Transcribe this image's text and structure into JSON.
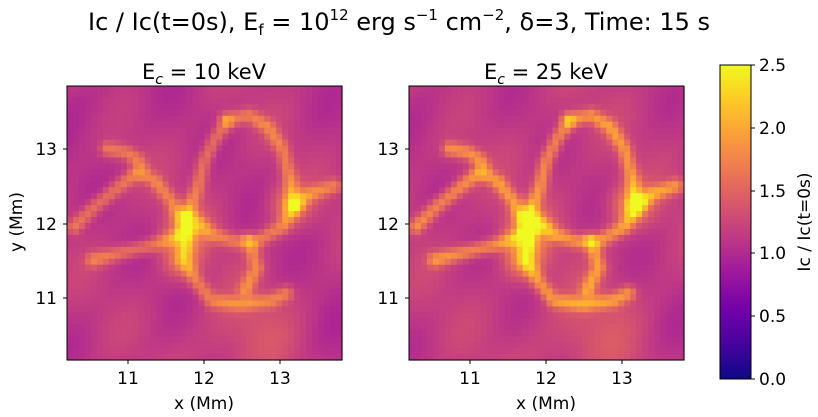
{
  "figure": {
    "suptitle_parts": {
      "p1": "Ic / Ic(t=0s), E",
      "p1_sub": "f",
      "p2": " = 10",
      "p2_sup": "12",
      "p3": " erg s",
      "p3_sup": "−1",
      "p4": " cm",
      "p4_sup": "−2",
      "p5": ", δ=3, Time: 15 s"
    },
    "colormap": "plasma",
    "colors": {
      "plasma": [
        "#0d0887",
        "#46039f",
        "#7201a8",
        "#9c179e",
        "#bd3786",
        "#d8576b",
        "#ed7953",
        "#fb9f3a",
        "#fdca26",
        "#f0f921"
      ]
    }
  },
  "chart_data": [
    {
      "type": "heatmap",
      "title_prefix": "E",
      "title_sub": "c",
      "title_suffix": " = 10 keV",
      "xlabel": "x (Mm)",
      "ylabel": "y (Mm)",
      "xlim": [
        10.15,
        13.85
      ],
      "ylim": [
        10.15,
        13.85
      ],
      "xticks": [
        "11",
        "12",
        "13"
      ],
      "yticks": [
        "11",
        "12",
        "13"
      ],
      "value_range": [
        0.9,
        2.1
      ],
      "description_value_scale": "ridges ~1.6-2.0, background ~1.0-1.2"
    },
    {
      "type": "heatmap",
      "title_prefix": "E",
      "title_sub": "c",
      "title_suffix": " = 25 keV",
      "xlabel": "x (Mm)",
      "ylabel": "",
      "xlim": [
        10.15,
        13.85
      ],
      "ylim": [
        10.15,
        13.85
      ],
      "xticks": [
        "11",
        "12",
        "13"
      ],
      "yticks": [
        "11",
        "12",
        "13"
      ],
      "value_range": [
        0.9,
        2.3
      ],
      "description_value_scale": "ridges ~1.7-2.2, background ~1.0-1.2"
    }
  ],
  "colorbar": {
    "label": "Ic / Ic(t=0s)",
    "vmin": 0.0,
    "vmax": 2.5,
    "ticks": [
      "0.0",
      "0.5",
      "1.0",
      "1.5",
      "2.0",
      "2.5"
    ]
  }
}
